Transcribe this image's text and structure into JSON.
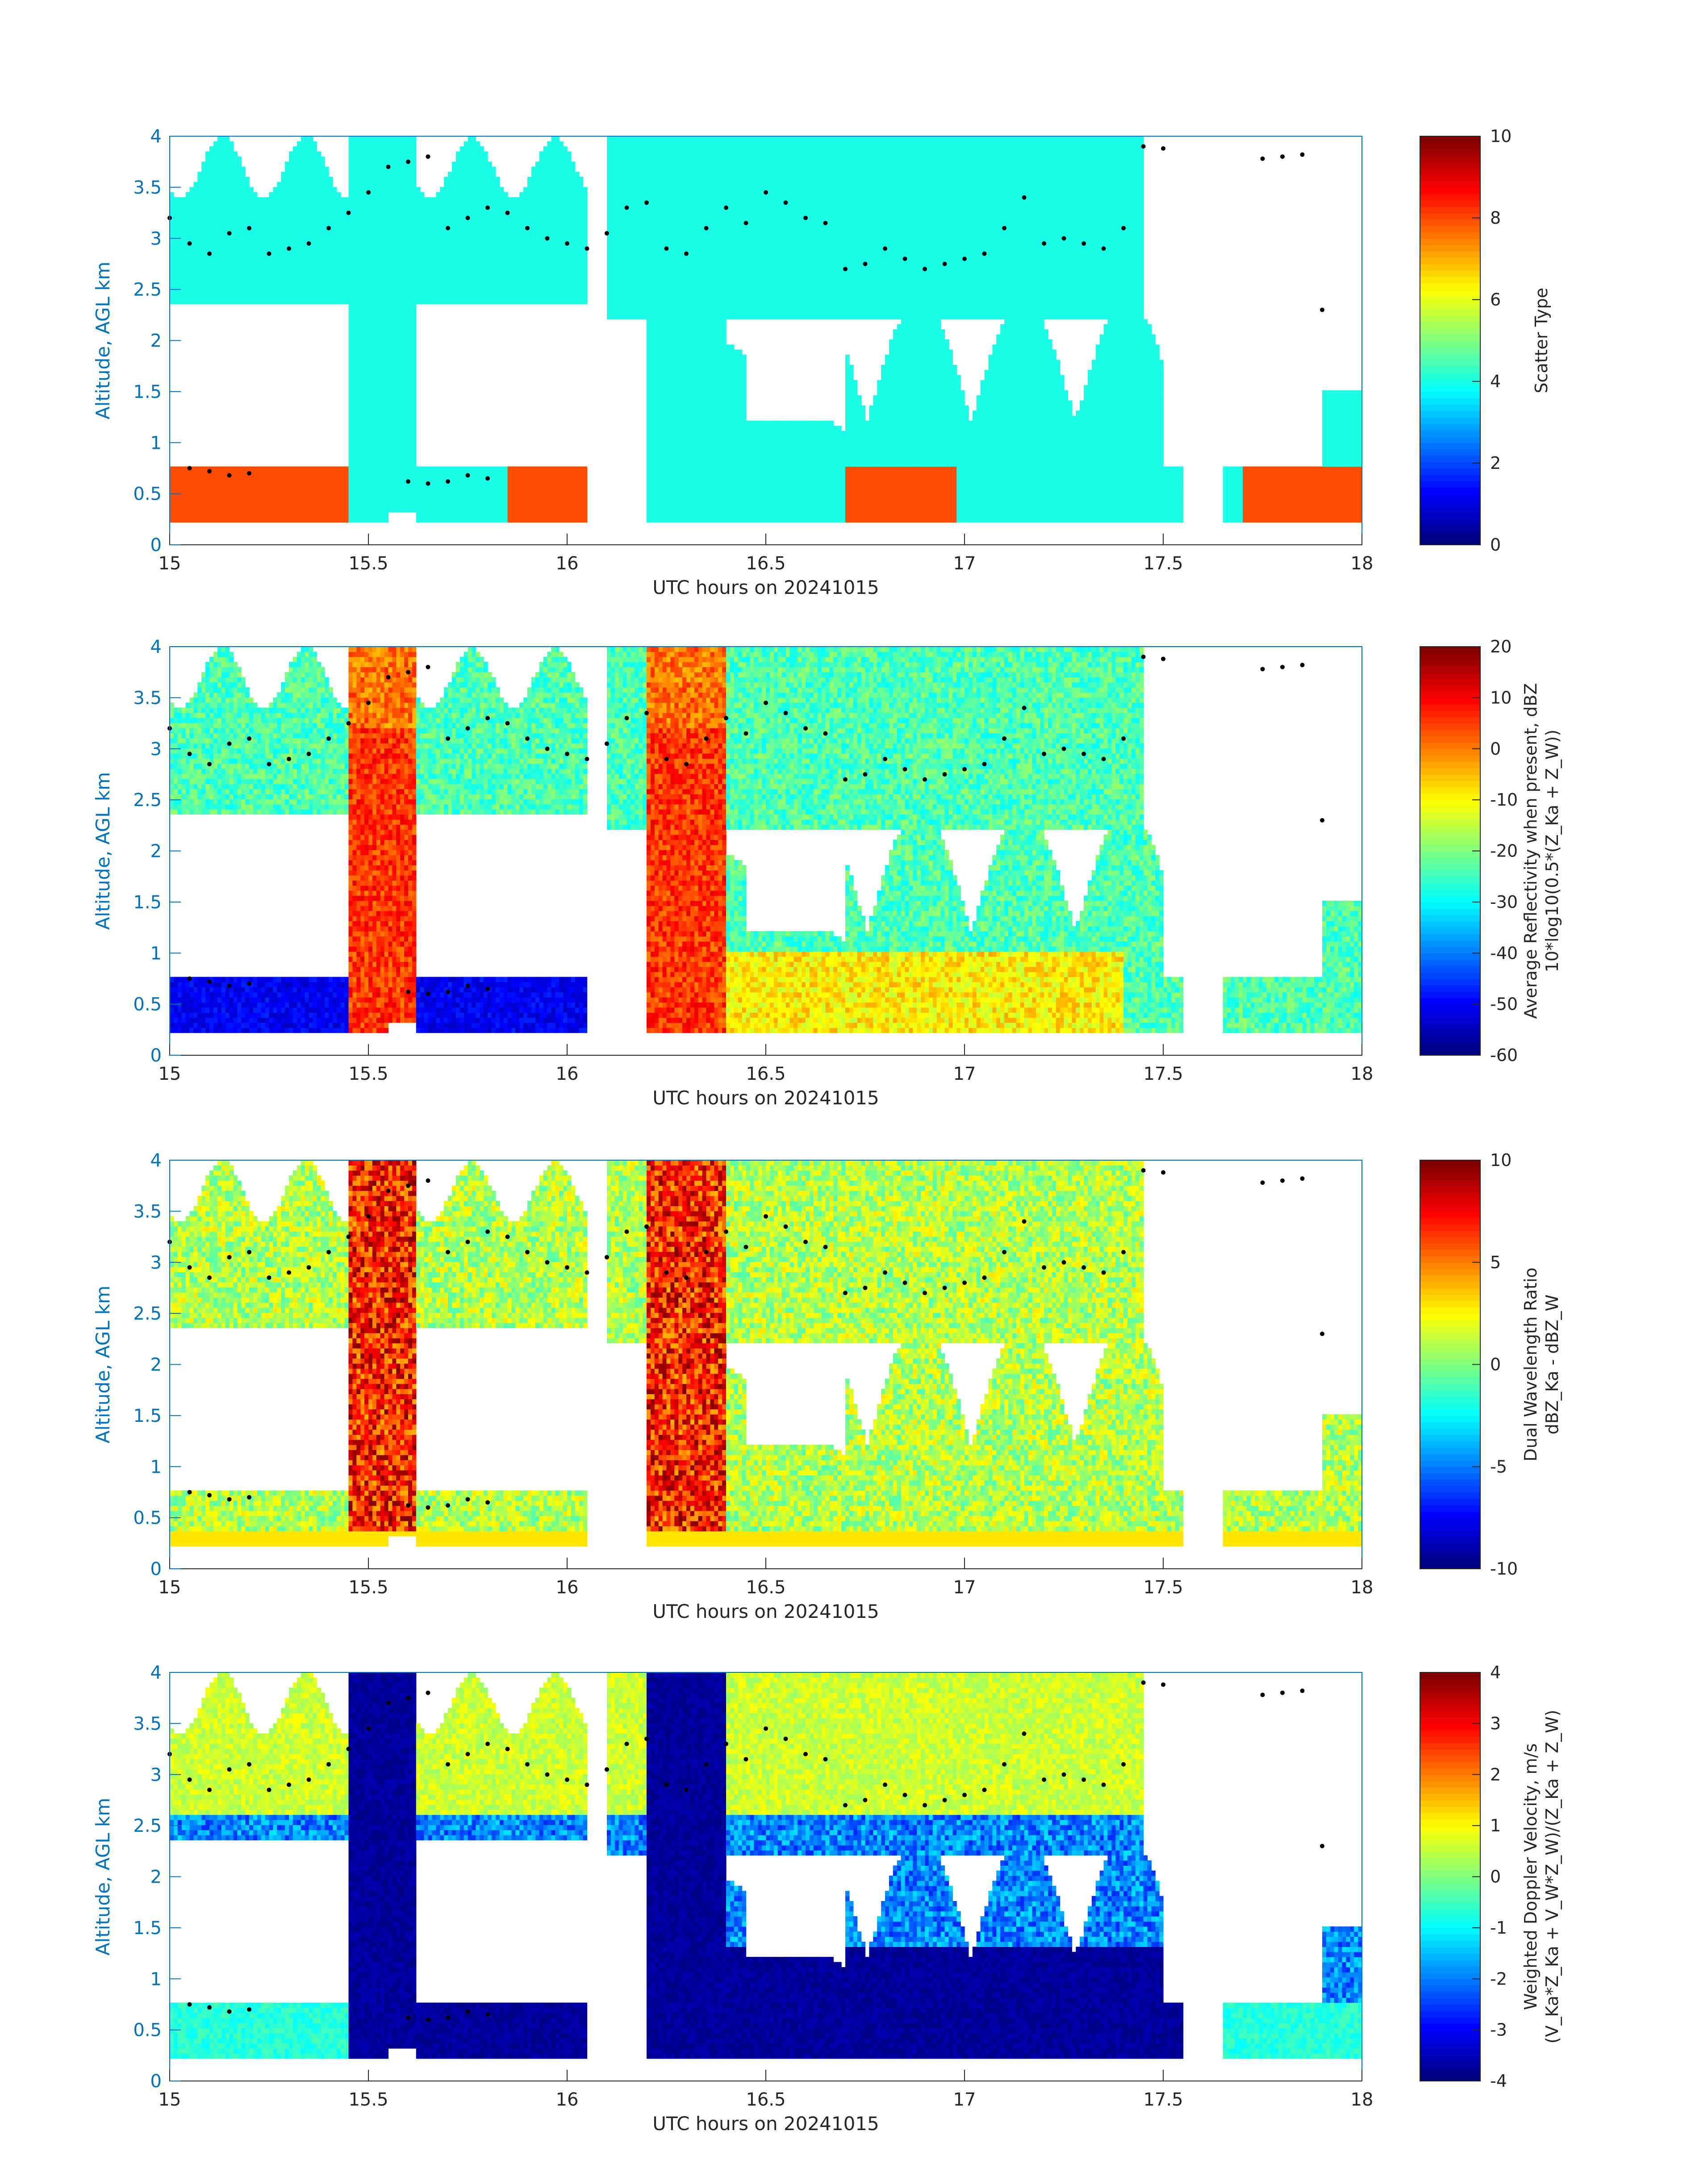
{
  "figure": {
    "colors": {
      "axis_y": "#0072BD",
      "axis_frame": "#0072BD",
      "text": "#262626",
      "marker": "#000000",
      "colormap": "jet"
    },
    "x_axis": {
      "label": "UTC hours on 20241015",
      "range": [
        15,
        18
      ],
      "ticks": [
        15,
        15.5,
        16,
        16.5,
        17,
        17.5,
        18
      ],
      "tick_labels": [
        "15",
        "15.5",
        "16",
        "16.5",
        "17",
        "17.5",
        "18"
      ]
    },
    "y_axis": {
      "label": "Altitude, AGL km",
      "range": [
        0,
        4
      ],
      "ticks": [
        0,
        0.5,
        1,
        1.5,
        2,
        2.5,
        3,
        3.5,
        4
      ],
      "tick_labels": [
        "0",
        "0.5",
        "1",
        "1.5",
        "2",
        "2.5",
        "3",
        "3.5",
        "4"
      ]
    },
    "panels": [
      {
        "id": "scatter-type",
        "colorbar": {
          "label_lines": [
            "Scatter Type"
          ],
          "range": [
            0,
            10
          ],
          "ticks": [
            0,
            2,
            4,
            6,
            8,
            10
          ],
          "tick_labels": [
            "0",
            "2",
            "4",
            "6",
            "8",
            "10"
          ]
        }
      },
      {
        "id": "reflectivity",
        "colorbar": {
          "label_lines": [
            "Average Reflectivity when present, dBZ",
            "10*log10(0.5*(Z_Ka + Z_W))"
          ],
          "range": [
            -60,
            20
          ],
          "ticks": [
            -60,
            -50,
            -40,
            -30,
            -20,
            -10,
            0,
            10,
            20
          ],
          "tick_labels": [
            "-60",
            "-50",
            "-40",
            "-30",
            "-20",
            "-10",
            "0",
            "10",
            "20"
          ]
        }
      },
      {
        "id": "dwr",
        "colorbar": {
          "label_lines": [
            "Dual Wavelength Ratio",
            "dBZ_Ka - dBZ_W"
          ],
          "range": [
            -10,
            10
          ],
          "ticks": [
            -10,
            -5,
            0,
            5,
            10
          ],
          "tick_labels": [
            "-10",
            "-5",
            "0",
            "5",
            "10"
          ]
        }
      },
      {
        "id": "doppler",
        "colorbar": {
          "label_lines": [
            "Weighted Doppler Velocity, m/s",
            "(V_Ka*Z_Ka + V_W*Z_W)/(Z_Ka + Z_W)"
          ],
          "range": [
            -4,
            4
          ],
          "ticks": [
            -4,
            -3,
            -2,
            -1,
            0,
            1,
            2,
            3,
            4
          ],
          "tick_labels": [
            "-4",
            "-3",
            "-2",
            "-1",
            "0",
            "1",
            "2",
            "3",
            "4"
          ]
        }
      }
    ]
  },
  "chart_data": {
    "type": "heatmap",
    "x_range": [
      15,
      18
    ],
    "y_range": [
      0,
      4
    ],
    "colormap": "jet",
    "panels": [
      "scatter-type",
      "reflectivity",
      "dwr",
      "doppler"
    ],
    "cloud_top_markers": [
      [
        15.0,
        3.2
      ],
      [
        15.05,
        2.95
      ],
      [
        15.1,
        2.85
      ],
      [
        15.15,
        3.05
      ],
      [
        15.2,
        3.1
      ],
      [
        15.25,
        2.85
      ],
      [
        15.3,
        2.9
      ],
      [
        15.35,
        2.95
      ],
      [
        15.4,
        3.1
      ],
      [
        15.45,
        3.25
      ],
      [
        15.5,
        3.45
      ],
      [
        15.55,
        3.7
      ],
      [
        15.6,
        3.75
      ],
      [
        15.65,
        3.8
      ],
      [
        15.7,
        3.1
      ],
      [
        15.75,
        3.2
      ],
      [
        15.8,
        3.3
      ],
      [
        15.85,
        3.25
      ],
      [
        15.9,
        3.1
      ],
      [
        15.95,
        3.0
      ],
      [
        16.0,
        2.95
      ],
      [
        16.05,
        2.9
      ],
      [
        16.1,
        3.05
      ],
      [
        16.15,
        3.3
      ],
      [
        16.2,
        3.35
      ],
      [
        16.25,
        2.9
      ],
      [
        16.3,
        2.85
      ],
      [
        16.35,
        3.1
      ],
      [
        16.4,
        3.3
      ],
      [
        16.45,
        3.15
      ],
      [
        16.5,
        3.45
      ],
      [
        16.55,
        3.35
      ],
      [
        16.6,
        3.2
      ],
      [
        16.65,
        3.15
      ],
      [
        16.7,
        2.7
      ],
      [
        16.75,
        2.75
      ],
      [
        16.8,
        2.9
      ],
      [
        16.85,
        2.8
      ],
      [
        16.9,
        2.7
      ],
      [
        16.95,
        2.75
      ],
      [
        17.0,
        2.8
      ],
      [
        17.05,
        2.85
      ],
      [
        17.1,
        3.1
      ],
      [
        17.15,
        3.4
      ],
      [
        17.2,
        2.95
      ],
      [
        17.25,
        3.0
      ],
      [
        17.3,
        2.95
      ],
      [
        17.35,
        2.9
      ],
      [
        17.4,
        3.1
      ],
      [
        17.45,
        3.9
      ],
      [
        17.5,
        3.88
      ],
      [
        17.75,
        3.78
      ],
      [
        17.8,
        3.8
      ],
      [
        17.85,
        3.82
      ],
      [
        17.9,
        2.3
      ]
    ],
    "boundary_layer_markers": [
      [
        15.05,
        0.75
      ],
      [
        15.1,
        0.72
      ],
      [
        15.15,
        0.68
      ],
      [
        15.2,
        0.7
      ],
      [
        15.6,
        0.62
      ],
      [
        15.65,
        0.6
      ],
      [
        15.7,
        0.62
      ],
      [
        15.75,
        0.68
      ],
      [
        15.8,
        0.65
      ]
    ]
  }
}
